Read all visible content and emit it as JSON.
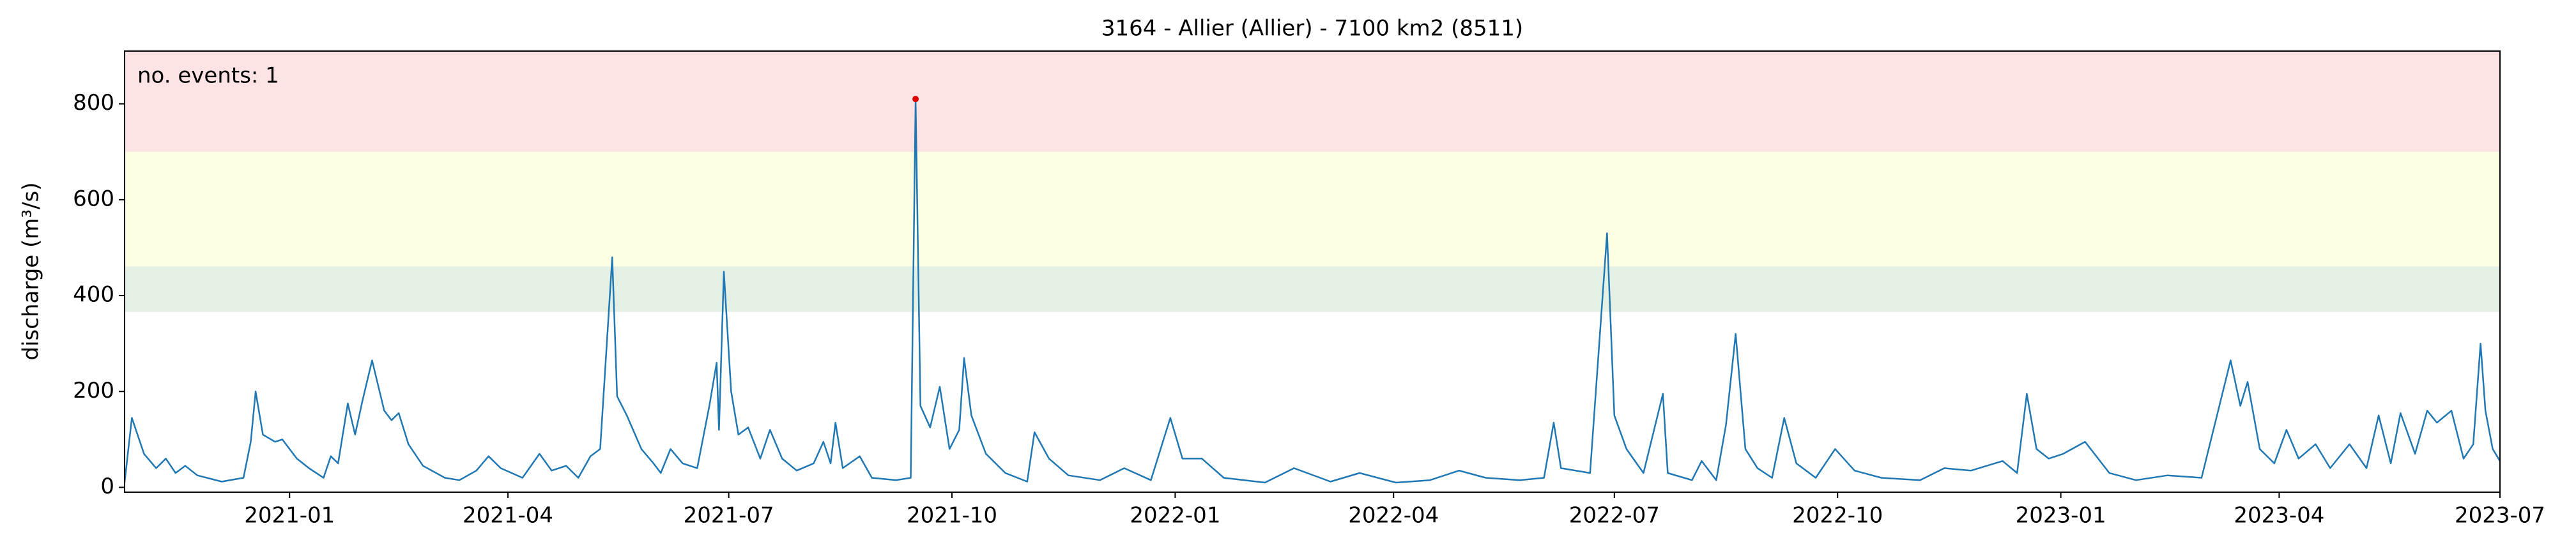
{
  "chart_data": {
    "type": "line",
    "title": "3164 - Allier (Allier) - 7100 km2 (8511)",
    "y_label": "discharge (m³/s)",
    "annotation": "no. events: 1",
    "annotation_color": "#cc0000",
    "xlim": [
      "2020-10-25",
      "2023-07-01"
    ],
    "xticks": [
      "2021-01",
      "2021-04",
      "2021-07",
      "2021-10",
      "2022-01",
      "2022-04",
      "2022-07",
      "2022-10",
      "2023-01",
      "2023-04",
      "2023-07"
    ],
    "ylim": [
      -10,
      910
    ],
    "yticks": [
      0,
      200,
      400,
      600,
      800
    ],
    "thresholds": [
      366,
      461,
      700
    ],
    "threshold_colors": [
      "#e3f0e3",
      "#fefee3",
      "#fee3e5"
    ],
    "x": [
      "2020-10-25",
      "2020-10-28",
      "2020-11-02",
      "2020-11-07",
      "2020-11-11",
      "2020-11-15",
      "2020-11-19",
      "2020-11-24",
      "2020-12-04",
      "2020-12-13",
      "2020-12-16",
      "2020-12-18",
      "2020-12-21",
      "2020-12-26",
      "2020-12-29",
      "2021-01-04",
      "2021-01-09",
      "2021-01-15",
      "2021-01-18",
      "2021-01-21",
      "2021-01-25",
      "2021-01-28",
      "2021-01-31",
      "2021-02-04",
      "2021-02-09",
      "2021-02-12",
      "2021-02-15",
      "2021-02-19",
      "2021-02-25",
      "2021-03-06",
      "2021-03-12",
      "2021-03-19",
      "2021-03-24",
      "2021-03-29",
      "2021-04-07",
      "2021-04-14",
      "2021-04-19",
      "2021-04-25",
      "2021-04-30",
      "2021-05-05",
      "2021-05-09",
      "2021-05-14",
      "2021-05-16",
      "2021-05-20",
      "2021-05-26",
      "2021-05-31",
      "2021-06-03",
      "2021-06-07",
      "2021-06-12",
      "2021-06-18",
      "2021-06-23",
      "2021-06-26",
      "2021-06-27",
      "2021-06-29",
      "2021-07-02",
      "2021-07-05",
      "2021-07-09",
      "2021-07-14",
      "2021-07-18",
      "2021-07-23",
      "2021-07-29",
      "2021-08-05",
      "2021-08-09",
      "2021-08-12",
      "2021-08-14",
      "2021-08-17",
      "2021-08-24",
      "2021-08-29",
      "2021-09-08",
      "2021-09-14",
      "2021-09-16",
      "2021-09-18",
      "2021-09-22",
      "2021-09-26",
      "2021-09-30",
      "2021-10-04",
      "2021-10-06",
      "2021-10-09",
      "2021-10-15",
      "2021-10-23",
      "2021-11-01",
      "2021-11-04",
      "2021-11-10",
      "2021-11-18",
      "2021-12-01",
      "2021-12-11",
      "2021-12-22",
      "2021-12-30",
      "2022-01-04",
      "2022-01-12",
      "2022-01-21",
      "2022-02-07",
      "2022-02-19",
      "2022-03-06",
      "2022-03-18",
      "2022-04-02",
      "2022-04-16",
      "2022-04-28",
      "2022-05-09",
      "2022-05-23",
      "2022-06-02",
      "2022-06-06",
      "2022-06-09",
      "2022-06-21",
      "2022-06-28",
      "2022-07-01",
      "2022-07-06",
      "2022-07-13",
      "2022-07-21",
      "2022-07-23",
      "2022-08-02",
      "2022-08-06",
      "2022-08-12",
      "2022-08-16",
      "2022-08-20",
      "2022-08-24",
      "2022-08-29",
      "2022-09-04",
      "2022-09-09",
      "2022-09-14",
      "2022-09-22",
      "2022-09-30",
      "2022-10-08",
      "2022-10-19",
      "2022-11-04",
      "2022-11-14",
      "2022-11-25",
      "2022-12-08",
      "2022-12-14",
      "2022-12-18",
      "2022-12-22",
      "2022-12-27",
      "2023-01-02",
      "2023-01-11",
      "2023-01-21",
      "2023-02-01",
      "2023-02-14",
      "2023-02-28",
      "2023-03-12",
      "2023-03-16",
      "2023-03-19",
      "2023-03-24",
      "2023-03-30",
      "2023-04-04",
      "2023-04-09",
      "2023-04-16",
      "2023-04-22",
      "2023-04-30",
      "2023-05-07",
      "2023-05-12",
      "2023-05-17",
      "2023-05-21",
      "2023-05-27",
      "2023-06-01",
      "2023-06-05",
      "2023-06-11",
      "2023-06-16",
      "2023-06-20",
      "2023-06-23",
      "2023-06-25",
      "2023-06-28",
      "2023-07-01"
    ],
    "series": [
      {
        "name": "discharge",
        "color": "#1f77b4",
        "values": [
          10,
          145,
          70,
          40,
          60,
          30,
          45,
          25,
          12,
          20,
          95,
          200,
          110,
          95,
          100,
          60,
          40,
          20,
          65,
          50,
          175,
          110,
          180,
          265,
          160,
          140,
          155,
          90,
          45,
          20,
          15,
          35,
          65,
          40,
          20,
          70,
          35,
          45,
          20,
          65,
          80,
          480,
          190,
          150,
          80,
          50,
          30,
          80,
          50,
          40,
          170,
          260,
          120,
          450,
          200,
          110,
          125,
          60,
          120,
          60,
          35,
          50,
          95,
          50,
          135,
          40,
          65,
          20,
          15,
          20,
          810,
          170,
          125,
          210,
          80,
          120,
          270,
          150,
          70,
          30,
          12,
          115,
          60,
          25,
          15,
          40,
          15,
          145,
          60,
          60,
          20,
          10,
          40,
          12,
          30,
          10,
          15,
          35,
          20,
          15,
          20,
          135,
          40,
          30,
          530,
          150,
          80,
          30,
          195,
          30,
          15,
          55,
          15,
          130,
          320,
          80,
          40,
          20,
          145,
          50,
          20,
          80,
          35,
          20,
          15,
          40,
          35,
          55,
          30,
          195,
          80,
          60,
          70,
          95,
          30,
          15,
          25,
          20,
          265,
          170,
          220,
          80,
          50,
          120,
          60,
          90,
          40,
          90,
          40,
          150,
          50,
          155,
          70,
          160,
          135,
          160,
          60,
          90,
          300,
          160,
          80,
          55
        ]
      }
    ],
    "events": {
      "color": "#e00000",
      "x": [
        "2021-09-16"
      ],
      "values": [
        810
      ]
    }
  }
}
